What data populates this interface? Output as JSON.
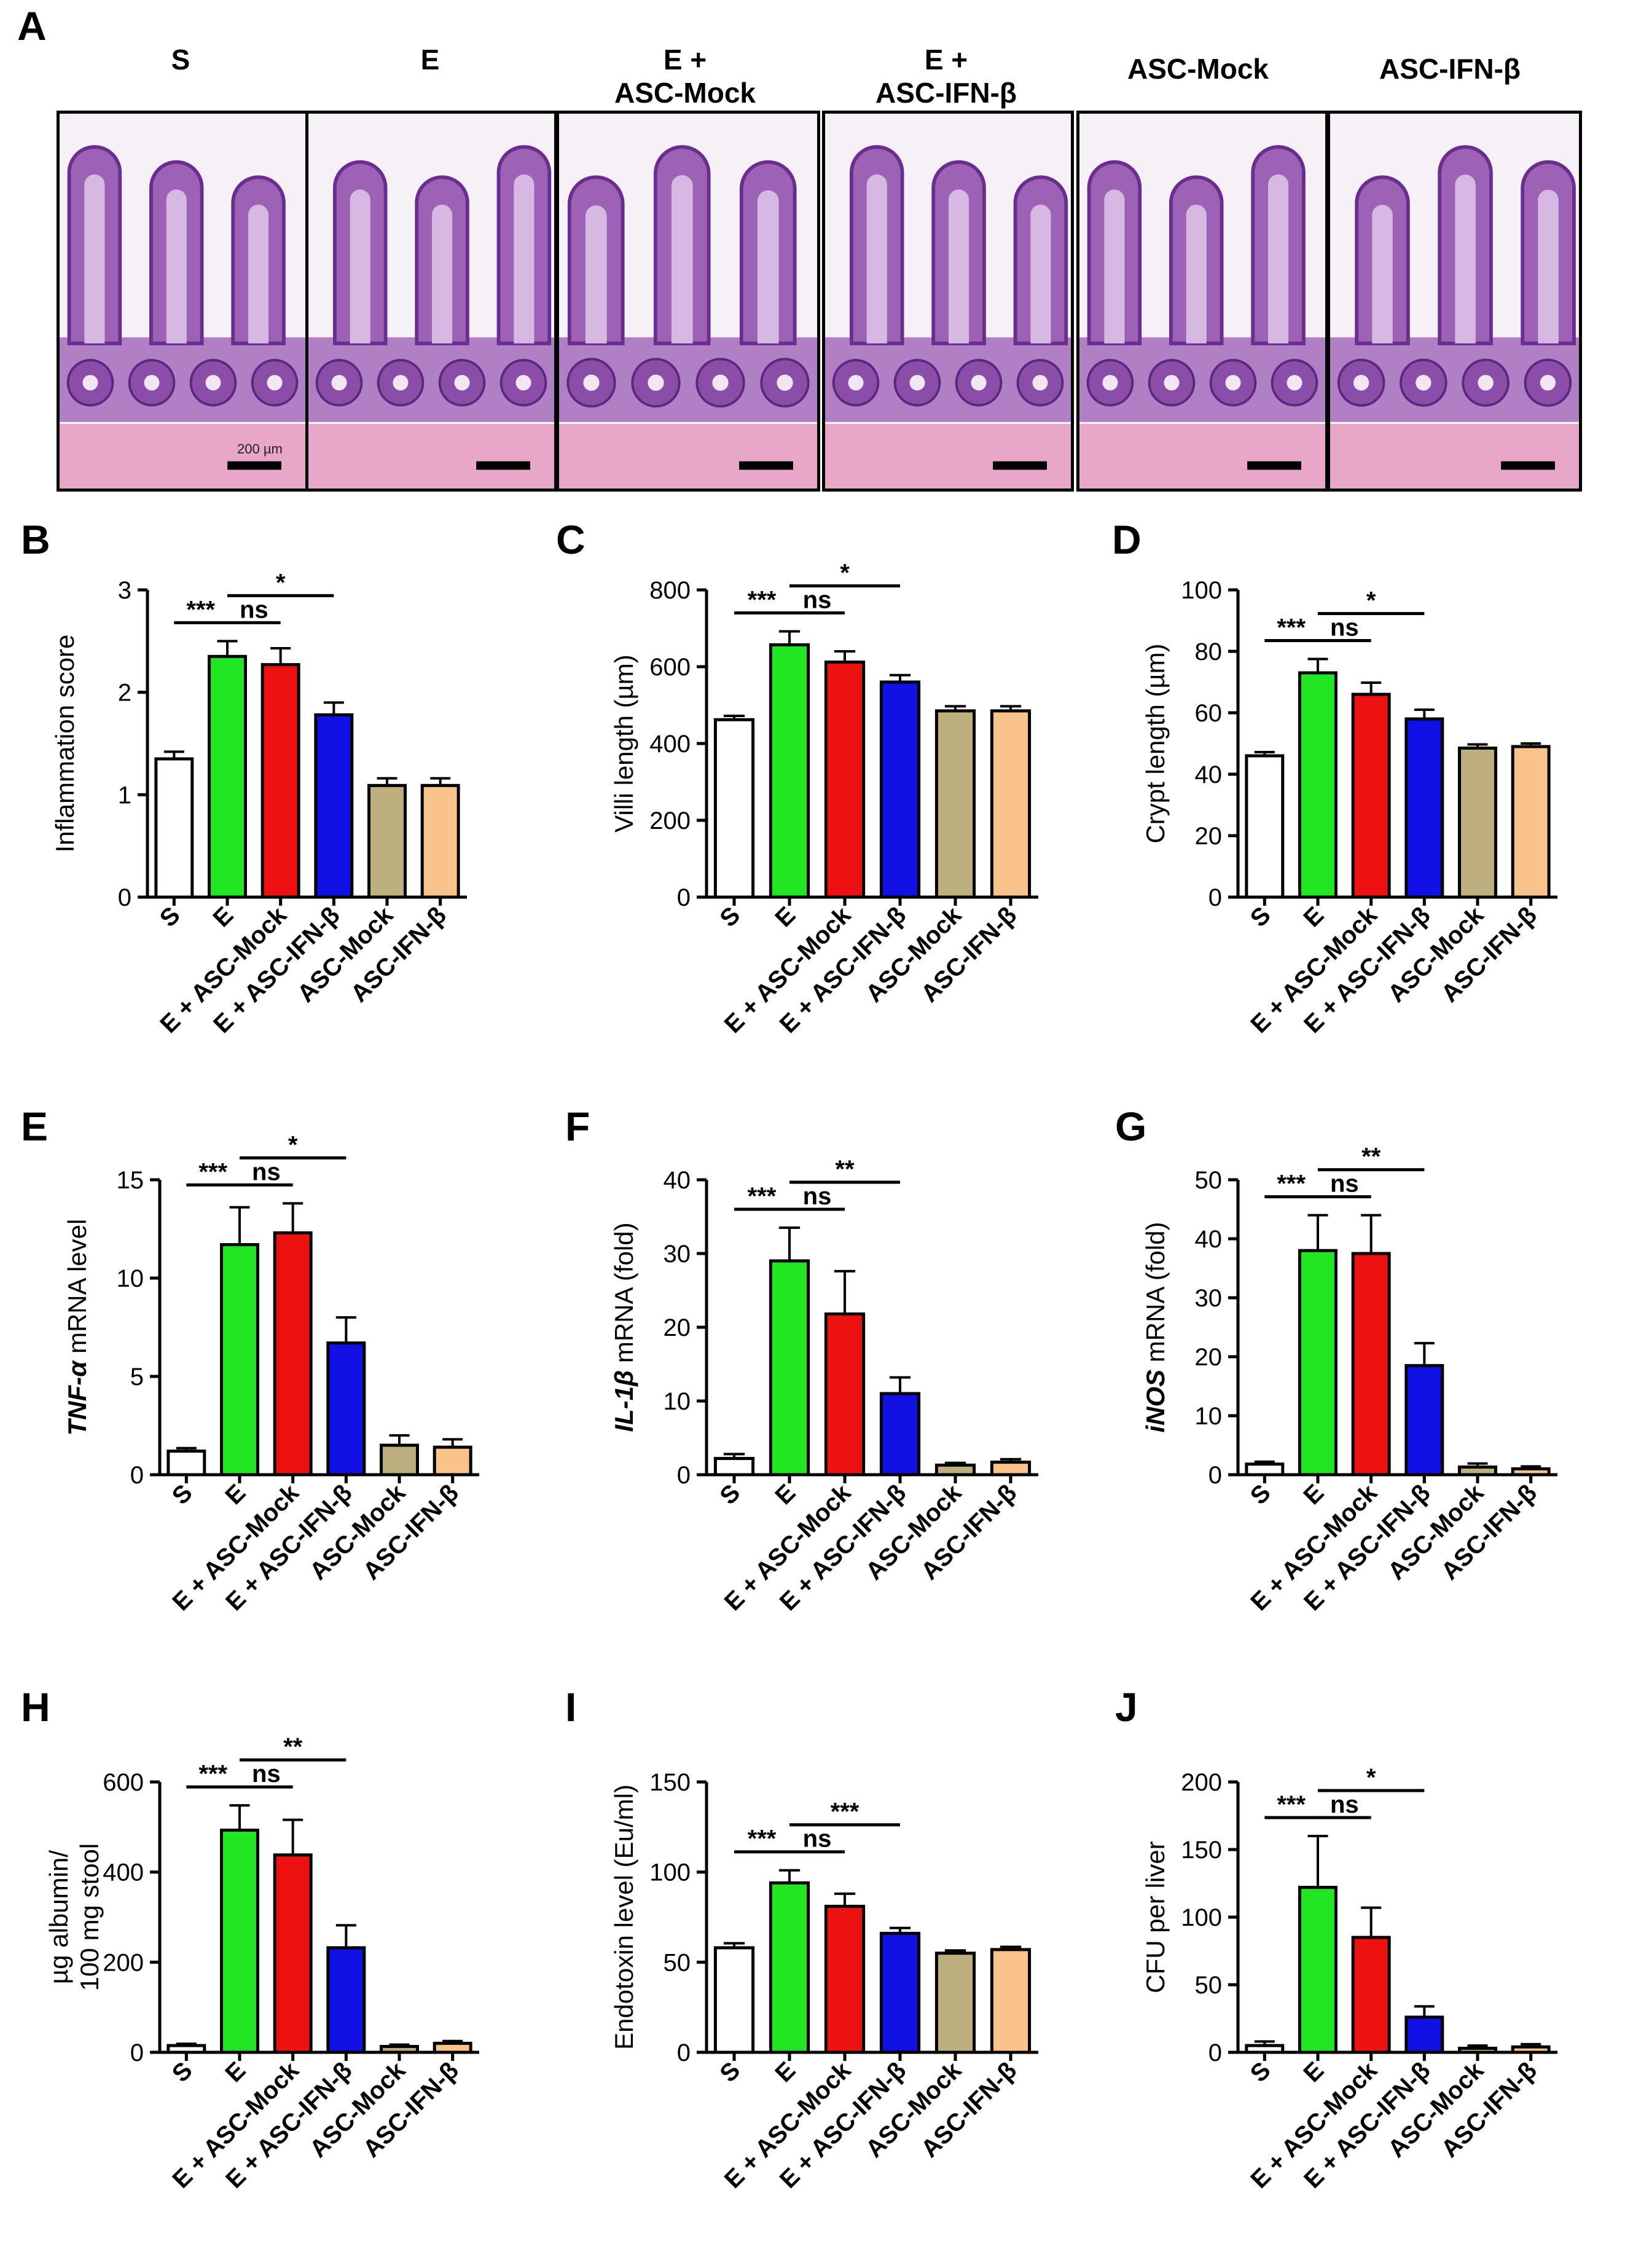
{
  "panel_letters": [
    "A",
    "B",
    "C",
    "D",
    "E",
    "F",
    "G",
    "H",
    "I",
    "J"
  ],
  "histology": {
    "groups": [
      {
        "line1": "S",
        "line2": ""
      },
      {
        "line1": "E",
        "line2": ""
      },
      {
        "line1": "E +",
        "line2": "ASC-Mock"
      },
      {
        "line1": "E +",
        "line2": "ASC-IFN-β"
      },
      {
        "line1": "ASC-Mock",
        "line2": ""
      },
      {
        "line1": "ASC-IFN-β",
        "line2": ""
      }
    ],
    "scale_bar_label": "200 µm"
  },
  "groups": [
    "S",
    "E",
    "E + ASC-Mock",
    "E + ASC-IFN-β",
    "ASC-Mock",
    "ASC-IFN-β"
  ],
  "colors": [
    "#ffffff",
    "#22e622",
    "#ee1111",
    "#1111e6",
    "#bdb07e",
    "#f8c48c"
  ],
  "chart_data": [
    {
      "panel": "B",
      "type": "bar",
      "ylabel": "Inflammation score",
      "ylabel_italic": "",
      "ylim": [
        0,
        3
      ],
      "ticks": [
        0,
        1,
        2,
        3
      ],
      "categories": [
        "S",
        "E",
        "E + ASC-Mock",
        "E + ASC-IFN-β",
        "ASC-Mock",
        "ASC-IFN-β"
      ],
      "values": [
        1.35,
        2.35,
        2.27,
        1.78,
        1.09,
        1.09
      ],
      "errors": [
        0.07,
        0.15,
        0.16,
        0.12,
        0.07,
        0.07
      ],
      "significance": [
        {
          "from": 0,
          "to": 1,
          "label": "***"
        },
        {
          "from": 1,
          "to": 2,
          "label": "ns"
        },
        {
          "from": 1,
          "to": 3,
          "label": "*"
        }
      ]
    },
    {
      "panel": "C",
      "type": "bar",
      "ylabel": "Villi length (µm)",
      "ylabel_italic": "",
      "ylim": [
        0,
        800
      ],
      "ticks": [
        0,
        200,
        400,
        600,
        800
      ],
      "categories": [
        "S",
        "E",
        "E + ASC-Mock",
        "E + ASC-IFN-β",
        "ASC-Mock",
        "ASC-IFN-β"
      ],
      "values": [
        462,
        657,
        612,
        560,
        485,
        485
      ],
      "errors": [
        10,
        35,
        28,
        18,
        12,
        12
      ],
      "significance": [
        {
          "from": 0,
          "to": 1,
          "label": "***"
        },
        {
          "from": 1,
          "to": 2,
          "label": "ns"
        },
        {
          "from": 1,
          "to": 3,
          "label": "*"
        }
      ]
    },
    {
      "panel": "D",
      "type": "bar",
      "ylabel": "Crypt length (µm)",
      "ylabel_italic": "",
      "ylim": [
        0,
        100
      ],
      "ticks": [
        0,
        20,
        40,
        60,
        80,
        100
      ],
      "categories": [
        "S",
        "E",
        "E + ASC-Mock",
        "E + ASC-IFN-β",
        "ASC-Mock",
        "ASC-IFN-β"
      ],
      "values": [
        46,
        73,
        66,
        58,
        48.5,
        49
      ],
      "errors": [
        1.2,
        4.5,
        3.8,
        3.0,
        1.2,
        1.0
      ],
      "significance": [
        {
          "from": 0,
          "to": 1,
          "label": "***"
        },
        {
          "from": 1,
          "to": 2,
          "label": "ns"
        },
        {
          "from": 1,
          "to": 3,
          "label": "*"
        }
      ]
    },
    {
      "panel": "E",
      "type": "bar",
      "ylabel": " mRNA level",
      "ylabel_italic": "TNF-α",
      "ylim": [
        0,
        15
      ],
      "ticks": [
        0,
        5,
        10,
        15
      ],
      "categories": [
        "S",
        "E",
        "E + ASC-Mock",
        "E + ASC-IFN-β",
        "ASC-Mock",
        "ASC-IFN-β"
      ],
      "values": [
        1.2,
        11.7,
        12.3,
        6.7,
        1.5,
        1.4
      ],
      "errors": [
        0.15,
        1.9,
        1.5,
        1.3,
        0.5,
        0.4
      ],
      "significance": [
        {
          "from": 0,
          "to": 1,
          "label": "***"
        },
        {
          "from": 1,
          "to": 2,
          "label": "ns"
        },
        {
          "from": 1,
          "to": 3,
          "label": "*"
        }
      ]
    },
    {
      "panel": "F",
      "type": "bar",
      "ylabel": " mRNA (fold)",
      "ylabel_italic": "IL-1β",
      "ylim": [
        0,
        40
      ],
      "ticks": [
        0,
        10,
        20,
        30,
        40
      ],
      "categories": [
        "S",
        "E",
        "E + ASC-Mock",
        "E + ASC-IFN-β",
        "ASC-Mock",
        "ASC-IFN-β"
      ],
      "values": [
        2.2,
        29,
        21.8,
        11,
        1.3,
        1.7
      ],
      "errors": [
        0.6,
        4.5,
        5.8,
        2.2,
        0.3,
        0.4
      ],
      "significance": [
        {
          "from": 0,
          "to": 1,
          "label": "***"
        },
        {
          "from": 1,
          "to": 2,
          "label": "ns"
        },
        {
          "from": 1,
          "to": 3,
          "label": "**"
        }
      ]
    },
    {
      "panel": "G",
      "type": "bar",
      "ylabel": " mRNA (fold)",
      "ylabel_italic": "iNOS",
      "ylim": [
        0,
        50
      ],
      "ticks": [
        0,
        10,
        20,
        30,
        40,
        50
      ],
      "categories": [
        "S",
        "E",
        "E + ASC-Mock",
        "E + ASC-IFN-β",
        "ASC-Mock",
        "ASC-IFN-β"
      ],
      "values": [
        1.8,
        38,
        37.5,
        18.5,
        1.3,
        1.0
      ],
      "errors": [
        0.4,
        6,
        6.5,
        3.8,
        0.6,
        0.4
      ],
      "significance": [
        {
          "from": 0,
          "to": 1,
          "label": "***"
        },
        {
          "from": 1,
          "to": 2,
          "label": "ns"
        },
        {
          "from": 1,
          "to": 3,
          "label": "**"
        }
      ]
    },
    {
      "panel": "H",
      "type": "bar",
      "ylabel": "µg albumin/",
      "ylabel2": "100 mg stool",
      "ylabel_italic": "",
      "ylim": [
        0,
        600
      ],
      "ticks": [
        0,
        200,
        400,
        600
      ],
      "categories": [
        "S",
        "E",
        "E + ASC-Mock",
        "E + ASC-IFN-β",
        "ASC-Mock",
        "ASC-IFN-β"
      ],
      "values": [
        15,
        493,
        438,
        232,
        13,
        20
      ],
      "errors": [
        4,
        55,
        78,
        50,
        4,
        5
      ],
      "significance": [
        {
          "from": 0,
          "to": 1,
          "label": "***"
        },
        {
          "from": 1,
          "to": 2,
          "label": "ns"
        },
        {
          "from": 1,
          "to": 3,
          "label": "**"
        }
      ]
    },
    {
      "panel": "I",
      "type": "bar",
      "ylabel": "Endotoxin level  (Eu/ml)",
      "ylabel_italic": "",
      "ylim": [
        0,
        150
      ],
      "ticks": [
        0,
        50,
        100,
        150
      ],
      "categories": [
        "S",
        "E",
        "E + ASC-Mock",
        "E + ASC-IFN-β",
        "ASC-Mock",
        "ASC-IFN-β"
      ],
      "values": [
        58,
        94,
        81,
        66,
        55,
        57
      ],
      "errors": [
        2.5,
        7,
        7,
        3,
        1.5,
        1.5
      ],
      "significance": [
        {
          "from": 0,
          "to": 1,
          "label": "***"
        },
        {
          "from": 1,
          "to": 2,
          "label": "ns"
        },
        {
          "from": 1,
          "to": 3,
          "label": "***"
        }
      ]
    },
    {
      "panel": "J",
      "type": "bar",
      "ylabel": "CFU per liver",
      "ylabel_italic": "",
      "ylim": [
        0,
        200
      ],
      "ticks": [
        0,
        50,
        100,
        150,
        200
      ],
      "categories": [
        "S",
        "E",
        "E + ASC-Mock",
        "E + ASC-IFN-β",
        "ASC-Mock",
        "ASC-IFN-β"
      ],
      "values": [
        5,
        122,
        85,
        26,
        3,
        4
      ],
      "errors": [
        3,
        38,
        22,
        8,
        2,
        2
      ],
      "significance": [
        {
          "from": 0,
          "to": 1,
          "label": "***"
        },
        {
          "from": 1,
          "to": 2,
          "label": "ns"
        },
        {
          "from": 1,
          "to": 3,
          "label": "*"
        }
      ]
    }
  ]
}
